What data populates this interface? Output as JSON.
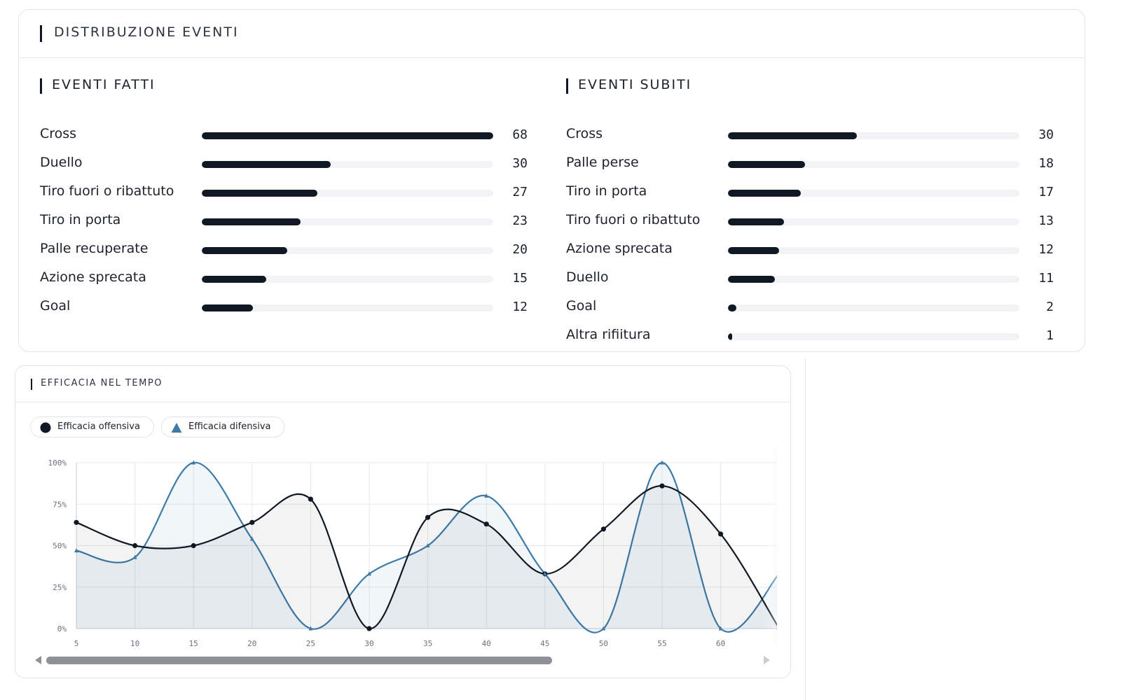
{
  "distribution": {
    "title": "DISTRIBUZIONE EVENTI",
    "fatti": {
      "title": "EVENTI FATTI",
      "max": 68,
      "items": [
        {
          "label": "Cross",
          "value": 68
        },
        {
          "label": "Duello",
          "value": 30
        },
        {
          "label": "Tiro fuori o ribattuto",
          "value": 27
        },
        {
          "label": "Tiro in porta",
          "value": 23
        },
        {
          "label": "Palle recuperate",
          "value": 20
        },
        {
          "label": "Azione sprecata",
          "value": 15
        },
        {
          "label": "Goal",
          "value": 12
        }
      ]
    },
    "subiti": {
      "title": "EVENTI SUBITI",
      "max": 68,
      "items": [
        {
          "label": "Cross",
          "value": 30
        },
        {
          "label": "Palle perse",
          "value": 18
        },
        {
          "label": "Tiro in porta",
          "value": 17
        },
        {
          "label": "Tiro fuori o ribattuto",
          "value": 13
        },
        {
          "label": "Azione sprecata",
          "value": 12
        },
        {
          "label": "Duello",
          "value": 11
        },
        {
          "label": "Goal",
          "value": 2
        },
        {
          "label": "Altra rifiitura",
          "value": 1
        }
      ]
    }
  },
  "efficacy": {
    "title": "EFFICACIA NEL TEMPO",
    "legend": {
      "offensive": "Efficacia offensiva",
      "defensive": "Efficacia difensiva"
    }
  },
  "colors": {
    "dark": "#0f1823",
    "blue": "#3d7ba6",
    "track": "#f2f3f5"
  },
  "chart_data": {
    "type": "line",
    "title": "EFFICACIA NEL TEMPO",
    "x": [
      5,
      10,
      15,
      20,
      25,
      30,
      35,
      40,
      45,
      50,
      55,
      60,
      65
    ],
    "x_ticks": [
      "5",
      "10",
      "15",
      "20",
      "25",
      "30",
      "35",
      "40",
      "45",
      "50",
      "55",
      "60"
    ],
    "y_ticks": [
      "0%",
      "25%",
      "50%",
      "75%",
      "100%"
    ],
    "ylim": [
      0,
      100
    ],
    "grid": true,
    "legend": "top-left",
    "series": [
      {
        "name": "Efficacia offensiva",
        "marker": "circle",
        "color": "#0f1823",
        "values": [
          64,
          50,
          50,
          64,
          78,
          0,
          67,
          63,
          33,
          60,
          86,
          57,
          0
        ]
      },
      {
        "name": "Efficacia difensiva",
        "marker": "triangle",
        "color": "#3d7ba6",
        "values": [
          47,
          43,
          100,
          54,
          0,
          33,
          50,
          80,
          33,
          0,
          100,
          0,
          33
        ]
      }
    ]
  }
}
